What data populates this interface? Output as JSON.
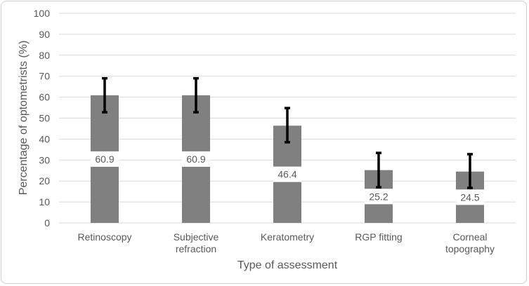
{
  "chart_data": {
    "type": "bar",
    "title": "",
    "xlabel": "Type of assessment",
    "ylabel": "Percentage of optometrists (%)",
    "categories": [
      [
        "Retinoscopy"
      ],
      [
        "Subjective",
        "refraction"
      ],
      [
        "Keratometry"
      ],
      [
        "RGP fitting"
      ],
      [
        "Corneal",
        "topography"
      ]
    ],
    "values": [
      60.9,
      60.9,
      46.4,
      25.2,
      24.5
    ],
    "data_labels": [
      "60.9",
      "60.9",
      "46.4",
      "25.2",
      "24.5"
    ],
    "error_low": [
      52.8,
      52.8,
      38.5,
      17.0,
      16.7
    ],
    "error_high": [
      69.0,
      69.0,
      54.8,
      33.4,
      32.8
    ],
    "ylim": [
      0,
      100
    ],
    "yticks": [
      0,
      10,
      20,
      30,
      40,
      50,
      60,
      70,
      80,
      90,
      100
    ],
    "grid": true,
    "legend": "none",
    "colors": {
      "bar": "#808080",
      "error": "#000000",
      "grid": "#d9d9d9",
      "text": "#595959"
    }
  }
}
